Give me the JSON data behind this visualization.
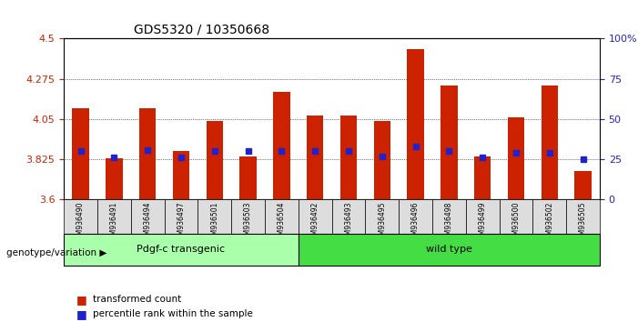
{
  "title": "GDS5320 / 10350668",
  "samples": [
    "GSM936490",
    "GSM936491",
    "GSM936494",
    "GSM936497",
    "GSM936501",
    "GSM936503",
    "GSM936504",
    "GSM936492",
    "GSM936493",
    "GSM936495",
    "GSM936496",
    "GSM936498",
    "GSM936499",
    "GSM936500",
    "GSM936502",
    "GSM936505"
  ],
  "bar_values": [
    4.11,
    3.83,
    4.11,
    3.87,
    4.04,
    3.84,
    4.2,
    4.07,
    4.07,
    4.04,
    4.44,
    4.24,
    3.84,
    4.06,
    4.24,
    3.76
  ],
  "percentile_values": [
    30,
    26,
    31,
    26,
    30,
    30,
    30,
    30,
    30,
    27,
    33,
    30,
    26,
    29,
    29,
    25
  ],
  "y_min": 3.6,
  "y_max": 4.5,
  "y_ticks_left": [
    3.6,
    3.825,
    4.05,
    4.275,
    4.5
  ],
  "y_ticks_right": [
    0,
    25,
    50,
    75,
    100
  ],
  "bar_color": "#cc2200",
  "dot_color": "#2222cc",
  "group1_label": "Pdgf-c transgenic",
  "group2_label": "wild type",
  "group1_count": 7,
  "group2_count": 9,
  "group1_color": "#aaffaa",
  "group2_color": "#44dd44",
  "genotype_label": "genotype/variation",
  "legend_bar": "transformed count",
  "legend_dot": "percentile rank within the sample",
  "axis_label_color_left": "#cc2200",
  "axis_label_color_right": "#2222cc",
  "background_color": "#ffffff",
  "plot_bg_color": "#ffffff",
  "tick_label_bg": "#dddddd"
}
